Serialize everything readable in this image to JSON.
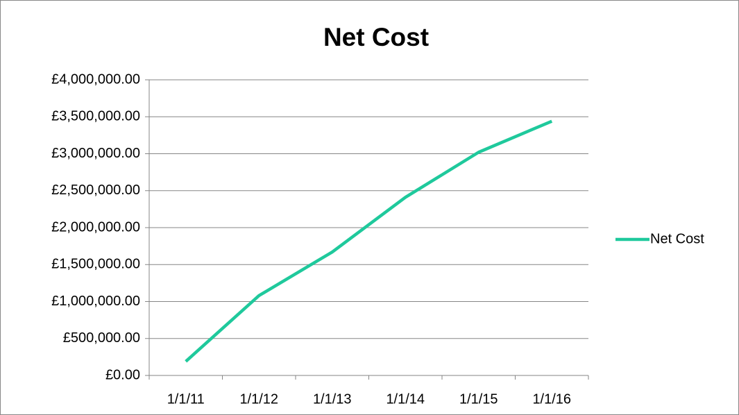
{
  "chart_data": {
    "type": "line",
    "title": "Net Cost",
    "categories": [
      "1/1/11",
      "1/1/12",
      "1/1/13",
      "1/1/14",
      "1/1/15",
      "1/1/16"
    ],
    "series": [
      {
        "name": "Net Cost",
        "color": "#1fc99c",
        "values": [
          190000,
          1080000,
          1670000,
          2410000,
          3020000,
          3440000
        ]
      }
    ],
    "ylim": [
      0,
      4000000
    ],
    "yticks": [
      {
        "value": 0,
        "label": "£0.00"
      },
      {
        "value": 500000,
        "label": "£500,000.00"
      },
      {
        "value": 1000000,
        "label": "£1,000,000.00"
      },
      {
        "value": 1500000,
        "label": "£1,500,000.00"
      },
      {
        "value": 2000000,
        "label": "£2,000,000.00"
      },
      {
        "value": 2500000,
        "label": "£2,500,000.00"
      },
      {
        "value": 3000000,
        "label": "£3,000,000.00"
      },
      {
        "value": 3500000,
        "label": "£3,500,000.00"
      },
      {
        "value": 4000000,
        "label": "£4,000,000.00"
      }
    ],
    "grid": true,
    "legend": "right"
  }
}
